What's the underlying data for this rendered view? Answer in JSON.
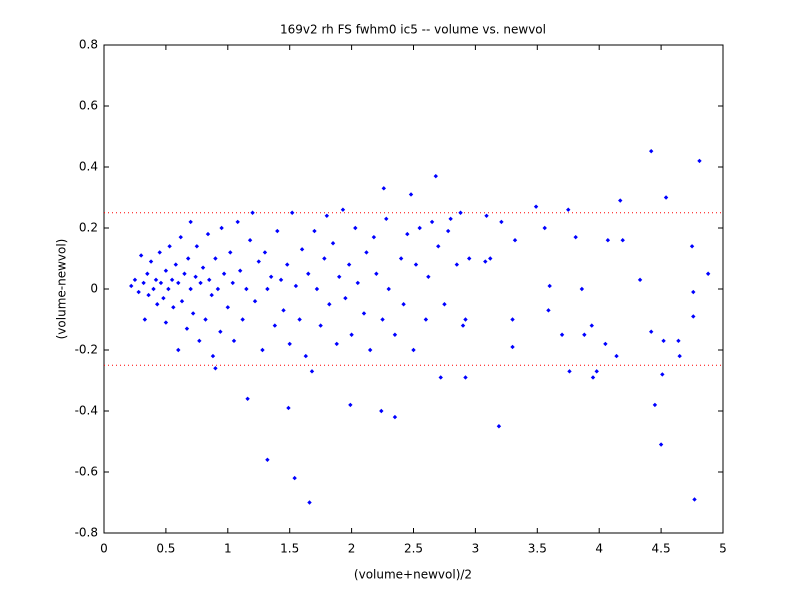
{
  "chart_data": {
    "type": "scatter",
    "title": "169v2 rh FS fwhm0 ic5 -- volume vs. newvol",
    "x_label": "(volume+newvol)/2",
    "y_label": "(volume-newvol)",
    "color": "#0000ff",
    "reference_lines": [
      0.25,
      -0.25
    ],
    "reference_color": "#ff0000",
    "xlim": [
      0,
      5
    ],
    "ylim": [
      -0.8,
      0.8
    ],
    "xticks": [
      0,
      0.5,
      1,
      1.5,
      2,
      2.5,
      3,
      3.5,
      4,
      4.5,
      5
    ],
    "yticks": [
      -0.8,
      -0.6,
      -0.4,
      -0.2,
      0,
      0.2,
      0.4,
      0.6,
      0.8
    ],
    "x": [
      4.42,
      4.81,
      4.54,
      4.17,
      3.49,
      3.75,
      2.48,
      2.68,
      2.26,
      4.75,
      4.88,
      4.33,
      3.6,
      3.86,
      4.07,
      4.19,
      3.81,
      3.56,
      4.76,
      4.76,
      3.59,
      3.88,
      3.7,
      3.94,
      4.05,
      4.14,
      4.42,
      4.52,
      4.64,
      4.65,
      3.76,
      3.98,
      3.95,
      4.45,
      4.51,
      4.5,
      4.77,
      3.19,
      2.92,
      2.72,
      2.24,
      2.35,
      1.99,
      1.49,
      1.16,
      1.32,
      1.54,
      1.66,
      0.9,
      3.32,
      3.3,
      3.3,
      2.92,
      3.12,
      3.08,
      3.21,
      3.09,
      2.88,
      0.22,
      0.25,
      0.28,
      0.3,
      0.32,
      0.33,
      0.35,
      0.36,
      0.38,
      0.4,
      0.42,
      0.43,
      0.45,
      0.46,
      0.48,
      0.5,
      0.5,
      0.52,
      0.53,
      0.55,
      0.56,
      0.58,
      0.6,
      0.6,
      0.62,
      0.63,
      0.65,
      0.67,
      0.68,
      0.7,
      0.7,
      0.72,
      0.74,
      0.75,
      0.77,
      0.78,
      0.8,
      0.82,
      0.84,
      0.85,
      0.87,
      0.88,
      0.9,
      0.92,
      0.94,
      0.95,
      0.97,
      1.0,
      1.02,
      1.04,
      1.05,
      1.08,
      1.1,
      1.12,
      1.15,
      1.18,
      1.2,
      1.22,
      1.25,
      1.28,
      1.3,
      1.32,
      1.35,
      1.38,
      1.4,
      1.43,
      1.45,
      1.48,
      1.5,
      1.52,
      1.55,
      1.58,
      1.6,
      1.63,
      1.65,
      1.68,
      1.7,
      1.72,
      1.75,
      1.78,
      1.8,
      1.82,
      1.85,
      1.88,
      1.9,
      1.93,
      1.95,
      1.98,
      2.0,
      2.03,
      2.05,
      2.1,
      2.12,
      2.15,
      2.18,
      2.2,
      2.25,
      2.28,
      2.3,
      2.35,
      2.4,
      2.42,
      2.45,
      2.5,
      2.52,
      2.55,
      2.6,
      2.62,
      2.65,
      2.7,
      2.75,
      2.78,
      2.8,
      2.85,
      2.9,
      2.95
    ],
    "values": [
      0.452,
      0.42,
      0.3,
      0.29,
      0.27,
      0.26,
      0.31,
      0.37,
      0.33,
      0.14,
      0.05,
      0.03,
      0.01,
      0,
      0.16,
      0.16,
      0.17,
      0.2,
      -0.01,
      -0.09,
      -0.07,
      -0.15,
      -0.15,
      -0.12,
      -0.18,
      -0.22,
      -0.14,
      -0.17,
      -0.17,
      -0.22,
      -0.27,
      -0.27,
      -0.29,
      -0.38,
      -0.28,
      -0.51,
      -0.69,
      -0.45,
      -0.29,
      -0.29,
      -0.4,
      -0.42,
      -0.38,
      -0.39,
      -0.36,
      -0.56,
      -0.62,
      -0.7,
      -0.26,
      0.16,
      -0.1,
      -0.19,
      -0.1,
      0.1,
      0.09,
      0.22,
      0.24,
      0.25,
      0.01,
      0.03,
      -0.01,
      0.11,
      0.02,
      -0.1,
      0.05,
      -0.02,
      0.09,
      0.0,
      0.03,
      -0.05,
      0.12,
      0.02,
      -0.03,
      0.06,
      -0.11,
      0.0,
      0.14,
      0.03,
      -0.06,
      0.08,
      -0.2,
      0.02,
      0.17,
      -0.04,
      0.05,
      -0.13,
      0.1,
      0.22,
      0.0,
      -0.08,
      0.04,
      0.14,
      -0.17,
      0.02,
      0.07,
      -0.1,
      0.18,
      0.03,
      -0.02,
      -0.22,
      0.1,
      0.0,
      -0.14,
      0.2,
      0.05,
      -0.06,
      0.12,
      0.02,
      -0.17,
      0.22,
      0.06,
      -0.1,
      0.0,
      0.16,
      0.25,
      -0.04,
      0.09,
      -0.2,
      0.12,
      0.0,
      0.04,
      -0.12,
      0.19,
      0.03,
      -0.07,
      0.08,
      -0.18,
      0.25,
      0.01,
      -0.1,
      0.13,
      -0.22,
      0.05,
      -0.27,
      0.19,
      0.0,
      -0.12,
      0.1,
      0.24,
      -0.05,
      0.15,
      -0.18,
      0.04,
      0.26,
      -0.03,
      0.08,
      -0.15,
      0.2,
      0.02,
      -0.08,
      0.12,
      -0.2,
      0.17,
      0.05,
      -0.1,
      0.23,
      0.0,
      -0.15,
      0.1,
      -0.05,
      0.18,
      -0.2,
      0.08,
      0.2,
      -0.1,
      0.04,
      0.22,
      0.14,
      -0.05,
      0.19,
      0.23,
      0.08,
      -0.12,
      0.1
    ]
  }
}
